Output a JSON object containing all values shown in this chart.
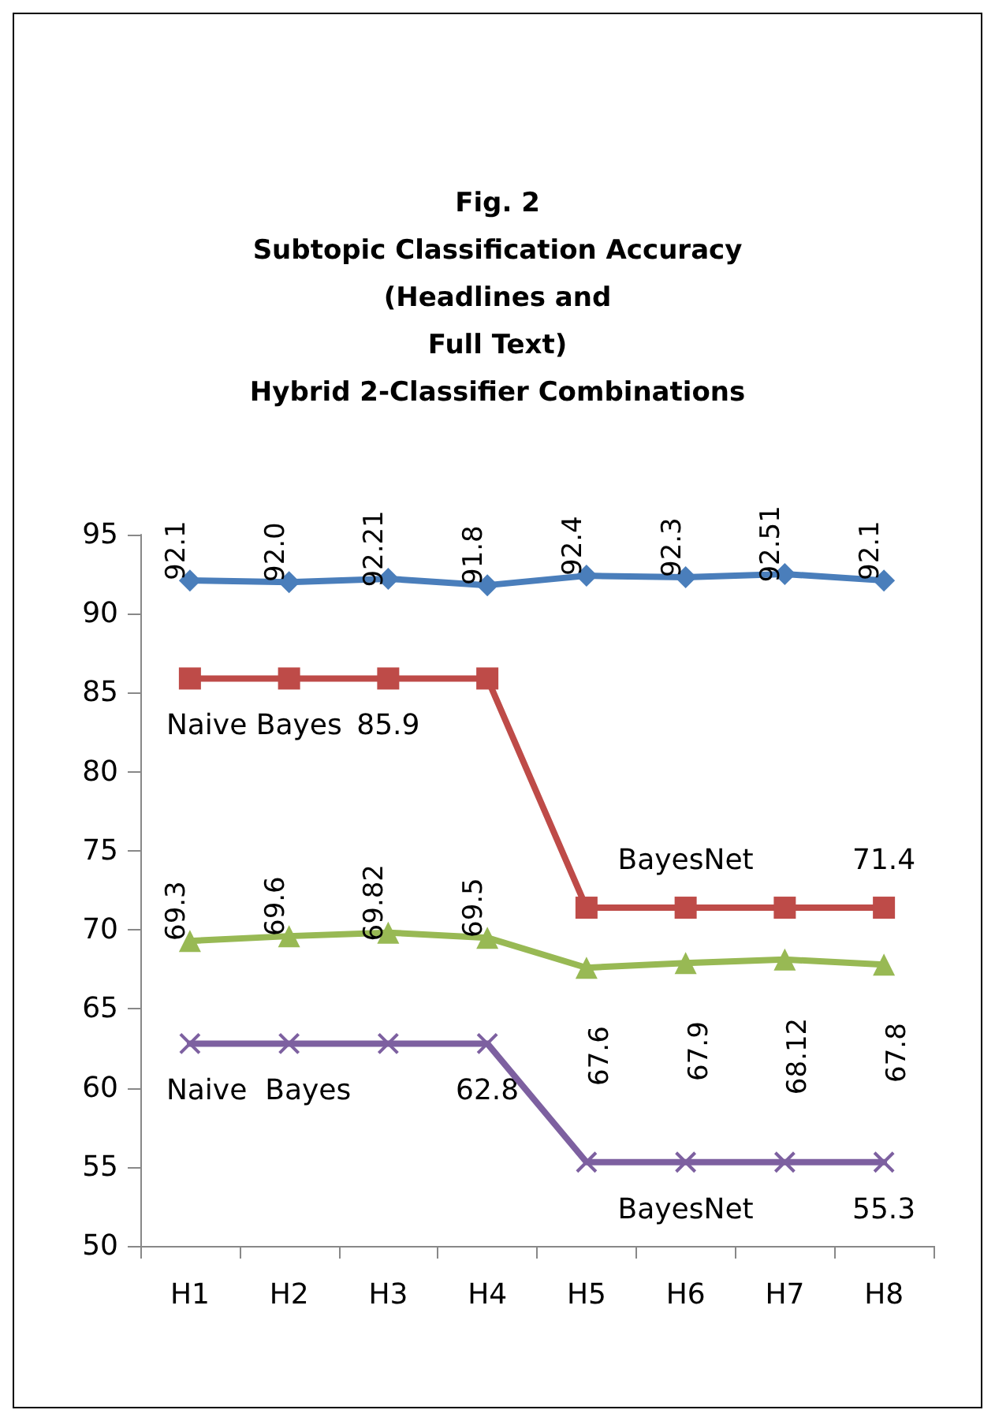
{
  "chart_data": {
    "type": "line",
    "title": "Fig. 2\nSubtopic Classification Accuracy\n(Headlines and\nFull Text)\nHybrid 2-Classifier Combinations",
    "categories": [
      "H1",
      "H2",
      "H3",
      "H4",
      "H5",
      "H6",
      "H7",
      "H8"
    ],
    "series": [
      {
        "color": "#4a7ebb",
        "marker": "diamond",
        "values": [
          92.1,
          92.0,
          92.21,
          91.8,
          92.4,
          92.3,
          92.51,
          92.1
        ],
        "value_labels": [
          "92.1",
          "92.0",
          "92.21",
          "91.8",
          "92.4",
          "92.3",
          "92.51",
          "92.1"
        ]
      },
      {
        "color": "#be4b48",
        "marker": "square",
        "values": [
          85.9,
          85.9,
          85.9,
          85.9,
          71.4,
          71.4,
          71.4,
          71.4
        ]
      },
      {
        "color": "#98b954",
        "marker": "triangle",
        "values": [
          69.3,
          69.6,
          69.82,
          69.5,
          67.6,
          67.9,
          68.12,
          67.8
        ],
        "value_labels": [
          "69.3",
          "69.6",
          "69.82",
          "69.5",
          "67.6",
          "67.9",
          "68.12",
          "67.8"
        ]
      },
      {
        "color": "#7d60a0",
        "marker": "cross",
        "values": [
          62.8,
          62.8,
          62.8,
          62.8,
          55.3,
          55.3,
          55.3,
          55.3
        ]
      }
    ],
    "annotations": [
      {
        "text": "Naive Bayes",
        "x": "H1",
        "y": 85.9
      },
      {
        "text": "85.9",
        "x": "H3",
        "y": 85.9
      },
      {
        "text": "BayesNet",
        "x": "H6",
        "y": 71.4
      },
      {
        "text": "71.4",
        "x": "H8",
        "y": 71.4
      },
      {
        "text": "Naive  Bayes",
        "x": "H1",
        "y": 62.8
      },
      {
        "text": "62.8",
        "x": "H4",
        "y": 62.8
      },
      {
        "text": "BayesNet",
        "x": "H6",
        "y": 55.3
      },
      {
        "text": "55.3",
        "x": "H8",
        "y": 55.3
      }
    ],
    "ylim": [
      50,
      95
    ],
    "yticks": [
      50,
      55,
      60,
      65,
      70,
      75,
      80,
      85,
      90,
      95
    ],
    "grid": false,
    "line_style": "solid"
  }
}
